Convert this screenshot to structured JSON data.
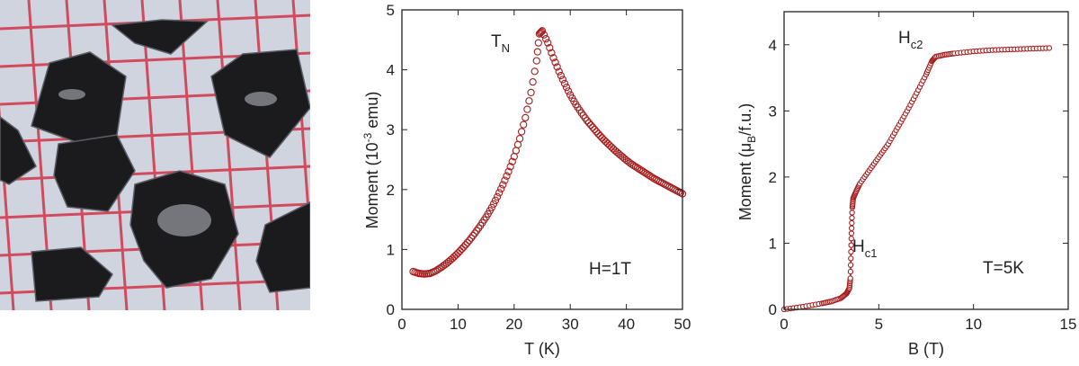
{
  "photo": {
    "description_label": "crystal flakes on grid paper"
  },
  "colors": {
    "marker": "#a51c1c",
    "axis": "#222222",
    "grid_paper": "#d9dde6",
    "grid_line": "#d2344a"
  },
  "chart_data": [
    {
      "type": "scatter",
      "title": "",
      "xlabel": "T (K)",
      "ylabel_main": "Moment (10",
      "ylabel_sup": "-3",
      "ylabel_tail": " emu)",
      "xlim": [
        0,
        50
      ],
      "ylim": [
        0,
        5
      ],
      "xticks": [
        0,
        10,
        20,
        30,
        40,
        50
      ],
      "yticks": [
        0,
        1,
        2,
        3,
        4,
        5
      ],
      "grid": false,
      "annotations": {
        "peak_main": "T",
        "peak_sub": "N",
        "condition": "H=1T"
      },
      "x": [
        2,
        3,
        4,
        5,
        6,
        7,
        8,
        9,
        10,
        11,
        12,
        13,
        14,
        15,
        16,
        17,
        18,
        19,
        20,
        21,
        22,
        23,
        24,
        24.5,
        25,
        26,
        27,
        28,
        29,
        30,
        31,
        32,
        33,
        34,
        35,
        36,
        37,
        38,
        39,
        40,
        41,
        42,
        43,
        44,
        45,
        46,
        47,
        48,
        49,
        50
      ],
      "y": [
        0.63,
        0.6,
        0.59,
        0.6,
        0.64,
        0.7,
        0.77,
        0.85,
        0.94,
        1.04,
        1.15,
        1.27,
        1.4,
        1.54,
        1.7,
        1.88,
        2.08,
        2.3,
        2.55,
        2.85,
        3.2,
        3.62,
        4.15,
        4.6,
        4.65,
        4.45,
        4.2,
        3.97,
        3.77,
        3.58,
        3.42,
        3.28,
        3.15,
        3.04,
        2.93,
        2.83,
        2.74,
        2.65,
        2.57,
        2.49,
        2.42,
        2.36,
        2.3,
        2.24,
        2.18,
        2.13,
        2.08,
        2.03,
        1.98,
        1.93
      ]
    },
    {
      "type": "line",
      "title": "",
      "xlabel": "B (T)",
      "ylabel_main": "Moment (μ",
      "ylabel_sub": "B",
      "ylabel_tail": "/f.u.)",
      "xlim": [
        0,
        15
      ],
      "ylim": [
        0,
        4.5
      ],
      "xticks": [
        0,
        5,
        10,
        15
      ],
      "yticks": [
        0,
        1,
        2,
        3,
        4
      ],
      "grid": false,
      "annotations": {
        "hc1_main": "H",
        "hc1_sub": "c1",
        "hc2_main": "H",
        "hc2_sub": "c2",
        "condition": "T=5K"
      },
      "x": [
        0,
        1,
        2,
        2.5,
        3,
        3.3,
        3.45,
        3.5,
        3.55,
        3.6,
        3.65,
        3.8,
        4,
        4.5,
        5,
        5.5,
        6,
        6.5,
        7,
        7.5,
        7.8,
        8,
        8.5,
        9,
        10,
        11,
        12,
        13,
        14
      ],
      "y": [
        0,
        0.04,
        0.09,
        0.12,
        0.17,
        0.24,
        0.32,
        0.47,
        1.07,
        1.54,
        1.68,
        1.78,
        1.9,
        2.1,
        2.3,
        2.5,
        2.75,
        3.0,
        3.27,
        3.55,
        3.75,
        3.82,
        3.85,
        3.87,
        3.9,
        3.92,
        3.93,
        3.94,
        3.95
      ]
    }
  ]
}
